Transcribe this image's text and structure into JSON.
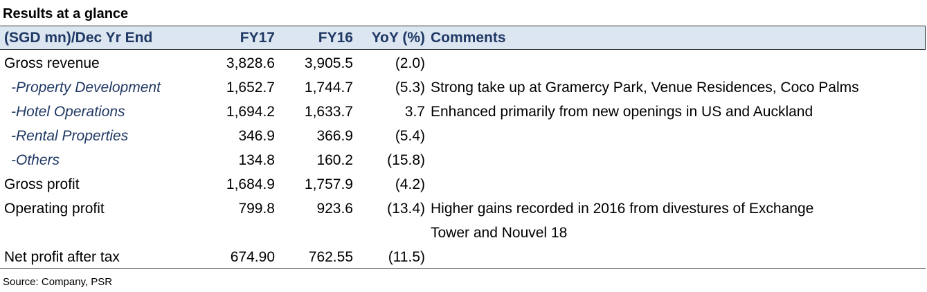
{
  "title": "Results at a glance",
  "table": {
    "header": [
      "(SGD mn)/Dec Yr End",
      "FY17",
      "FY16",
      "YoY (%)",
      "Comments"
    ],
    "rows": [
      {
        "label": "Gross revenue",
        "fy17": "3,828.6",
        "fy16": "3,905.5",
        "yoy": "(2.0)"
      },
      {
        "label": "-Property Development",
        "fy17": "1,652.7",
        "fy16": "1,744.7",
        "yoy": "(5.3)",
        "comment": [
          "Strong take up at Gramercy Park, Venue Residences, Coco Palms"
        ]
      },
      {
        "label": "-Hotel Operations",
        "fy17": "1,694.2",
        "fy16": "1,633.7",
        "yoy": "3.7",
        "comment": [
          "Enhanced primarily from new openings in US and Auckland"
        ]
      },
      {
        "label": "-Rental Properties",
        "fy17": "346.9",
        "fy16": "366.9",
        "yoy": "(5.4)"
      },
      {
        "label": "-Others",
        "fy17": "134.8",
        "fy16": "160.2",
        "yoy": "(15.8)"
      },
      {
        "label": "Gross profit",
        "fy17": "1,684.9",
        "fy16": "1,757.9",
        "yoy": "(4.2)"
      },
      {
        "label": "Operating profit",
        "fy17": "799.8",
        "fy16": "923.6",
        "yoy": "(13.4)",
        "comment": [
          "Higher gains recorded in 2016 from divestures of Exchange",
          "Tower and Nouvel 18"
        ]
      },
      {
        "label": "Net profit after tax",
        "fy17": "674.90",
        "fy16": "762.55",
        "yoy": "(11.5)"
      }
    ]
  },
  "source": "Source: Company, PSR"
}
